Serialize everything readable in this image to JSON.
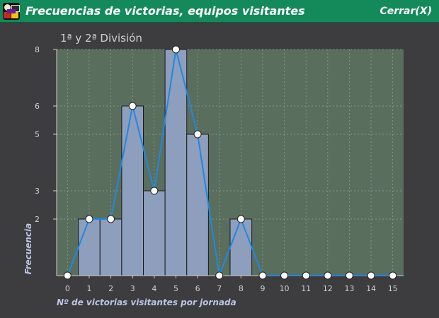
{
  "window": {
    "title": "Frecuencias de victorias, equipos visitantes",
    "close_label": "Cerrar(X)",
    "icon": "app-logo-icon"
  },
  "colors": {
    "titlebar": "#148a5a",
    "background": "#3d3c3e",
    "plot_bg": "#5a6e5e",
    "bar_fill": "#8e9ebd",
    "line": "#1e88e5",
    "label_text": "#b9c6e4"
  },
  "chart_data": {
    "type": "bar",
    "title": "1ª y 2ª División",
    "xlabel": "Nº de victorias visitantes por jornada",
    "ylabel": "Frecuencia",
    "x": [
      0,
      1,
      2,
      3,
      4,
      5,
      6,
      7,
      8,
      9,
      10,
      11,
      12,
      13,
      14,
      15
    ],
    "values": [
      0,
      2,
      2,
      6,
      3,
      8,
      5,
      0,
      2,
      0,
      0,
      0,
      0,
      0,
      0,
      0
    ],
    "ylim": [
      0,
      8
    ],
    "yticks": [
      2,
      3,
      5,
      6,
      8
    ],
    "xlim": [
      -0.5,
      15.5
    ],
    "overlay_line": true,
    "grid": true
  }
}
